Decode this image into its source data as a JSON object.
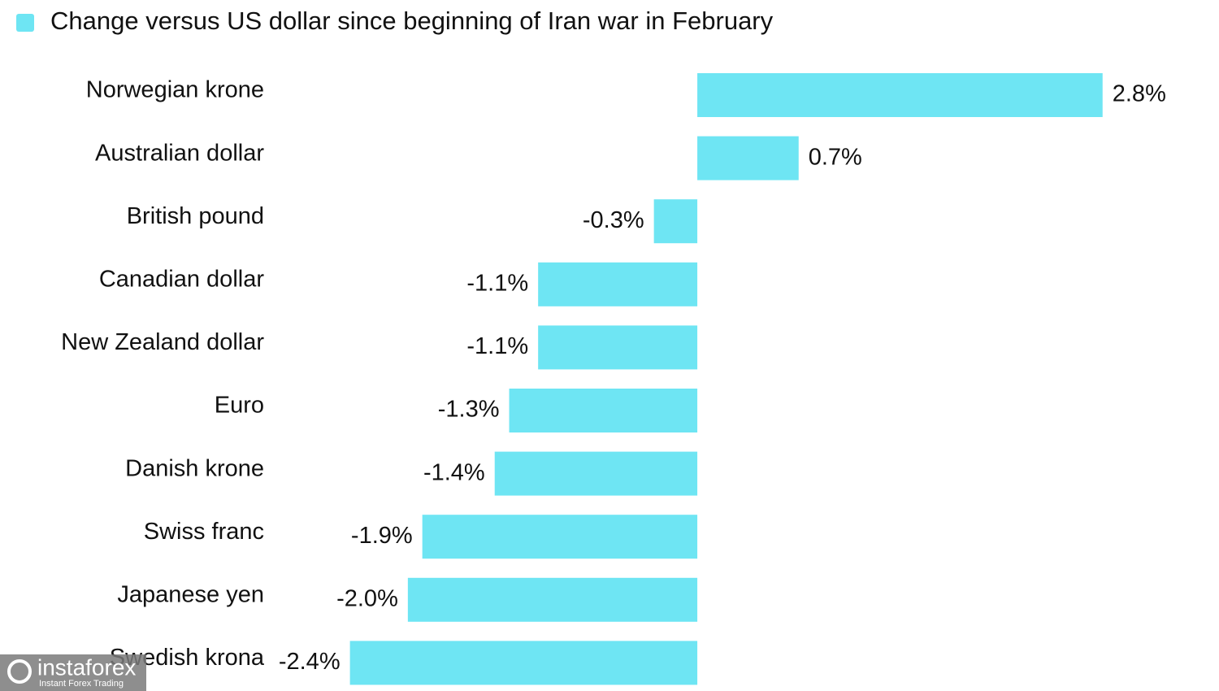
{
  "chart_data": {
    "type": "hbar",
    "categories": [
      "Norwegian krone",
      "Australian dollar",
      "British pound",
      "Canadian dollar",
      "New Zealand dollar",
      "Euro",
      "Danish krone",
      "Swiss franc",
      "Japanese yen",
      "Swedish krona"
    ],
    "series": [
      {
        "name": "Change versus US dollar since beginning of Iran war in February",
        "color": "#6ee5f3",
        "values": [
          2.8,
          0.7,
          -0.3,
          -1.1,
          -1.1,
          -1.3,
          -1.4,
          -1.9,
          -2.0,
          -2.4
        ],
        "value_labels": [
          "2.8%",
          "0.7%",
          "-0.3%",
          "-1.1%",
          "-1.1%",
          "-1.3%",
          "-1.4%",
          "-1.9%",
          "-2.0%",
          "-2.4%"
        ]
      }
    ],
    "xlim": [
      -2.6,
      3.2
    ],
    "legend": "top-left"
  },
  "watermark": {
    "brand": "instaforex",
    "tagline": "Instant Forex Trading"
  }
}
